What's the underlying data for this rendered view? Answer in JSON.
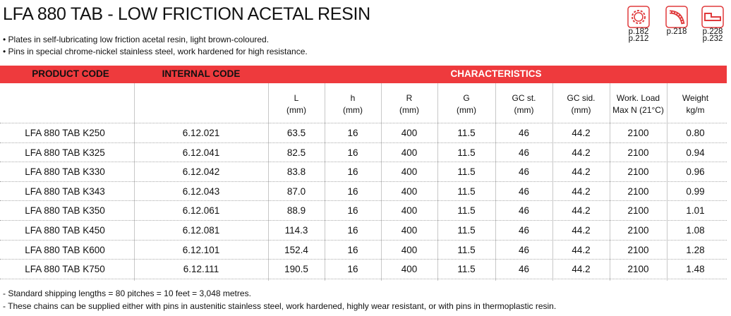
{
  "header": {
    "title": "LFA 880 TAB - LOW FRICTION ACETAL RESIN",
    "bullets": [
      "• Plates in self-lubricating low friction acetal resin, light brown-coloured.",
      "• Pins in special chrome-nickel stainless steel, work hardened for high resistance."
    ],
    "icons": [
      {
        "refs": [
          "p.182",
          "p.212"
        ]
      },
      {
        "refs": [
          "p.218"
        ]
      },
      {
        "refs": [
          "p.228",
          "p.232"
        ]
      }
    ]
  },
  "table": {
    "groups": [
      "PRODUCT CODE",
      "INTERNAL CODE",
      "CHARACTERISTICS"
    ],
    "columns": [
      [
        "L",
        "(mm)"
      ],
      [
        "h",
        "(mm)"
      ],
      [
        "R",
        "(mm)"
      ],
      [
        "G",
        "(mm)"
      ],
      [
        "GC st.",
        "(mm)"
      ],
      [
        "GC sid.",
        "(mm)"
      ],
      [
        "Work. Load",
        "Max N (21°C)"
      ],
      [
        "Weight",
        "kg/m"
      ]
    ],
    "rows": [
      [
        "LFA 880 TAB K250",
        "6.12.021",
        "63.5",
        "16",
        "400",
        "11.5",
        "46",
        "44.2",
        "2100",
        "0.80"
      ],
      [
        "LFA 880 TAB K325",
        "6.12.041",
        "82.5",
        "16",
        "400",
        "11.5",
        "46",
        "44.2",
        "2100",
        "0.94"
      ],
      [
        "LFA 880 TAB K330",
        "6.12.042",
        "83.8",
        "16",
        "400",
        "11.5",
        "46",
        "44.2",
        "2100",
        "0.96"
      ],
      [
        "LFA 880 TAB K343",
        "6.12.043",
        "87.0",
        "16",
        "400",
        "11.5",
        "46",
        "44.2",
        "2100",
        "0.99"
      ],
      [
        "LFA 880 TAB K350",
        "6.12.061",
        "88.9",
        "16",
        "400",
        "11.5",
        "46",
        "44.2",
        "2100",
        "1.01"
      ],
      [
        "LFA 880 TAB K450",
        "6.12.081",
        "114.3",
        "16",
        "400",
        "11.5",
        "46",
        "44.2",
        "2100",
        "1.08"
      ],
      [
        "LFA 880 TAB K600",
        "6.12.101",
        "152.4",
        "16",
        "400",
        "11.5",
        "46",
        "44.2",
        "2100",
        "1.28"
      ],
      [
        "LFA 880 TAB K750",
        "6.12.111",
        "190.5",
        "16",
        "400",
        "11.5",
        "46",
        "44.2",
        "2100",
        "1.48"
      ]
    ]
  },
  "notes": [
    "- Standard shipping lengths = 80 pitches = 10 feet = 3,048 metres.",
    "- These chains can be supplied either with pins in austenitic stainless steel, work hardened, highly wear resistant, or with pins in thermoplastic resin."
  ]
}
